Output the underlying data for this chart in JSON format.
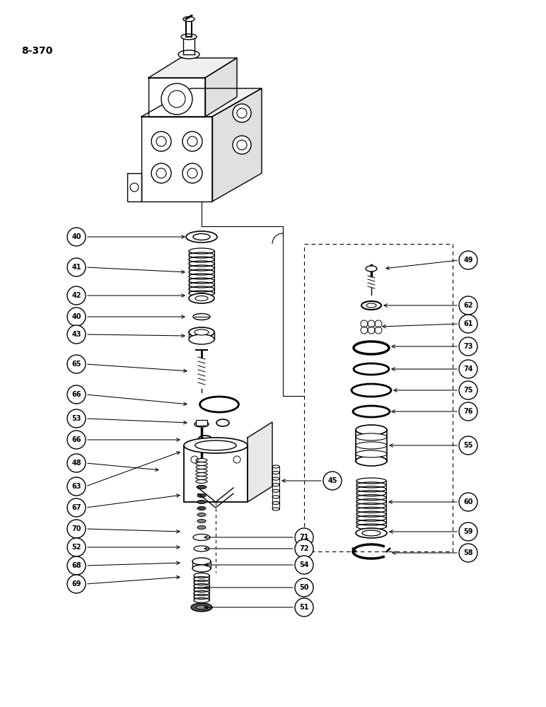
{
  "page_label": "8-370",
  "background_color": "#ffffff",
  "fig_width": 7.72,
  "fig_height": 10.0,
  "dpi": 100
}
